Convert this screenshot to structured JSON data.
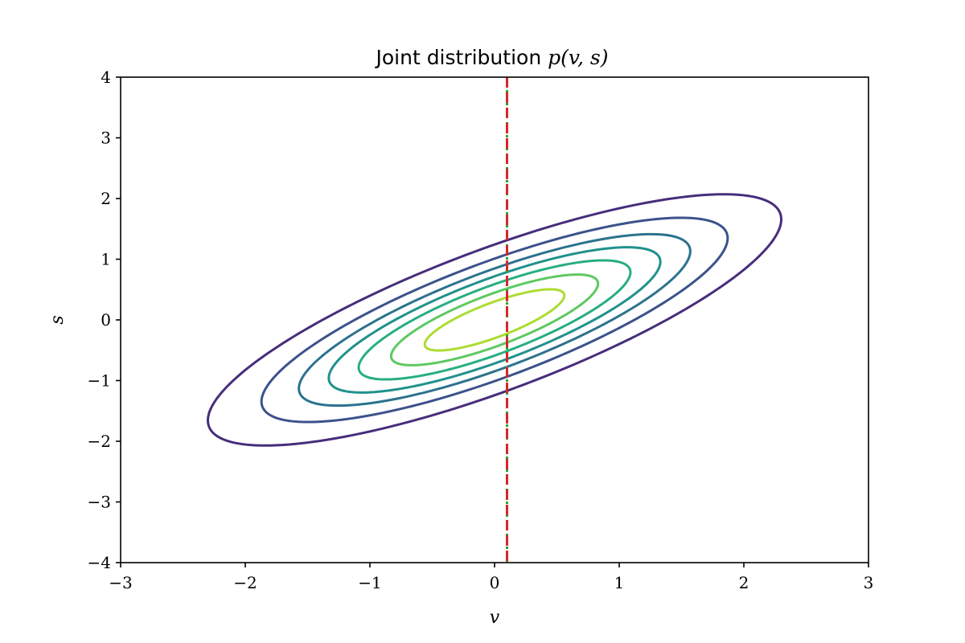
{
  "chart_data": {
    "type": "line",
    "title": "Joint distribution p(v, s)",
    "title_text": "Joint distribution ",
    "title_math": "p(v, s)",
    "xlabel": "v",
    "ylabel": "s",
    "xlim": [
      -3,
      3
    ],
    "ylim": [
      -4,
      4
    ],
    "xticks": [
      -3,
      -2,
      -1,
      0,
      1,
      2,
      3
    ],
    "yticks": [
      -4,
      -3,
      -2,
      -1,
      0,
      1,
      2,
      3,
      4
    ],
    "xtick_labels": [
      "−3",
      "−2",
      "−1",
      "0",
      "1",
      "2",
      "3"
    ],
    "ytick_labels": [
      "−4",
      "−3",
      "−2",
      "−1",
      "0",
      "1",
      "2",
      "3",
      "4"
    ],
    "grid": false,
    "contours": {
      "kind": "bivariate-normal",
      "mean": [
        0,
        0
      ],
      "sigma_v": 1,
      "sigma_s": 0.9,
      "correlation": 0.8,
      "radii": [
        2.3,
        1.87,
        1.57,
        1.33,
        1.09,
        0.83,
        0.56
      ],
      "colors": [
        "#472d7b",
        "#3b528b",
        "#2c728e",
        "#21918c",
        "#28ae80",
        "#5ec962",
        "#addc30"
      ]
    },
    "vertical_lines": [
      {
        "x": 0.1,
        "color": "#2ca02c",
        "style": "dotted"
      },
      {
        "x": 0.1,
        "color": "#d62728",
        "style": "dashed"
      }
    ]
  }
}
